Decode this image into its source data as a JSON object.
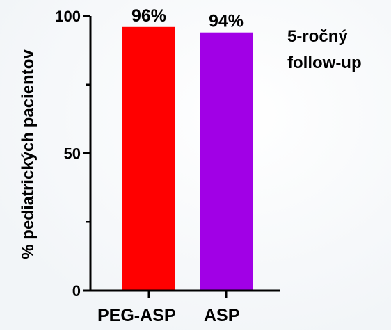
{
  "chart_data": {
    "type": "bar",
    "categories": [
      "PEG-ASP",
      "ASP"
    ],
    "values": [
      96,
      94
    ],
    "data_labels": [
      "96%",
      "94%"
    ],
    "colors": [
      "#ff0000",
      "#a100e6"
    ],
    "ylabel": "% pediatrických pacientov",
    "xlabel": "",
    "ylim": [
      0,
      100
    ],
    "yticks": [
      0,
      50,
      100
    ],
    "y_minor_ticks": [
      25,
      75
    ],
    "annotation": [
      "5-ročný",
      "follow-up"
    ],
    "grid": false
  }
}
